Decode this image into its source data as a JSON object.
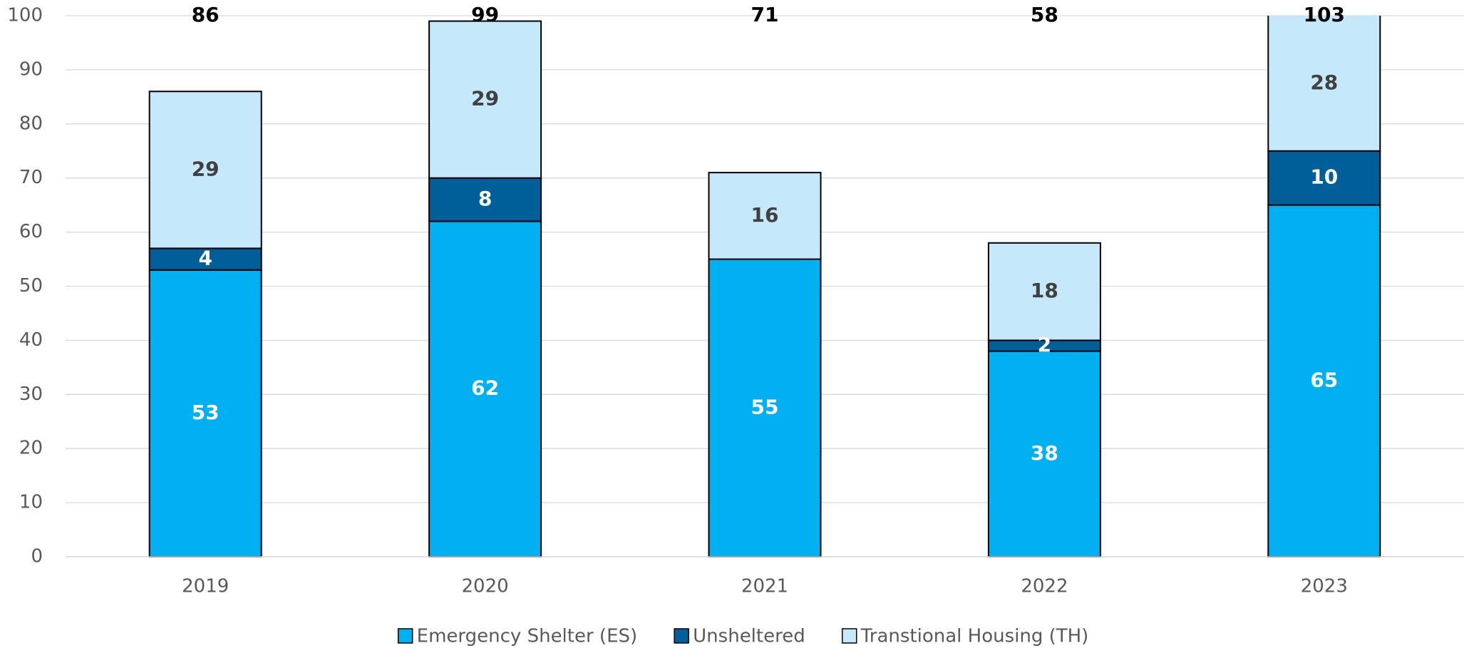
{
  "chart_data": {
    "type": "stacked_bar",
    "categories": [
      "2019",
      "2020",
      "2021",
      "2022",
      "2023"
    ],
    "series": [
      {
        "name": "Emergency Shelter (ES)",
        "color": "#00b0f0",
        "values": [
          53,
          62,
          55,
          38,
          65
        ]
      },
      {
        "name": "Unsheltered",
        "color": "#005f99",
        "values": [
          4,
          8,
          null,
          2,
          10
        ]
      },
      {
        "name": "Transtional Housing (TH)",
        "color": "#c5e8fb",
        "values": [
          29,
          29,
          16,
          18,
          28
        ]
      }
    ],
    "totals": [
      86,
      99,
      71,
      58,
      103
    ],
    "ylim": [
      0,
      100
    ],
    "yticks": [
      0,
      10,
      20,
      30,
      40,
      50,
      60,
      70,
      80,
      90,
      100
    ],
    "grid": true,
    "legend": "bottom"
  }
}
